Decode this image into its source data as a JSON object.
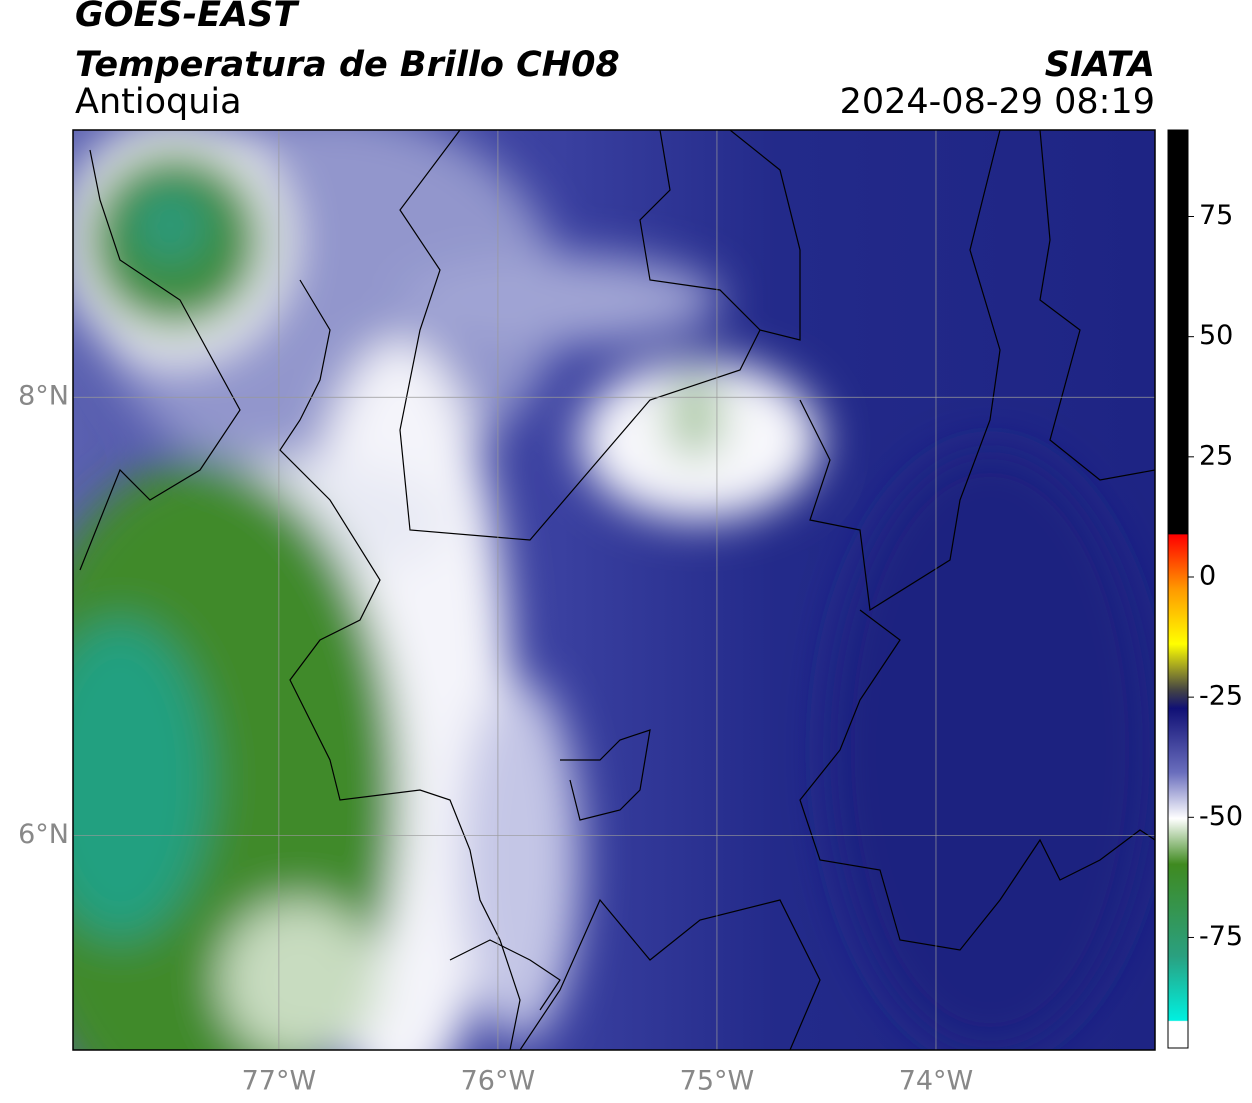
{
  "header": {
    "title": "GOES-EAST",
    "subtitle": "Temperatura de Brillo CH08",
    "region": "Antioquia",
    "source": "SIATA",
    "datetime": "2024-08-29 08:19"
  },
  "map": {
    "xlim": [
      -77.94,
      -73.0
    ],
    "ylim": [
      5.02,
      9.22
    ],
    "xticks": [
      {
        "value": -77,
        "label": "77°W"
      },
      {
        "value": -76,
        "label": "76°W"
      },
      {
        "value": -75,
        "label": "75°W"
      },
      {
        "value": -74,
        "label": "74°W"
      }
    ],
    "yticks": [
      {
        "value": 8,
        "label": "8°N"
      },
      {
        "value": 6,
        "label": "6°N"
      }
    ],
    "grid": true
  },
  "colorbar": {
    "lim": [
      -98,
      93
    ],
    "ticks": [
      75,
      50,
      25,
      0,
      -25,
      -50,
      -75
    ]
  }
}
